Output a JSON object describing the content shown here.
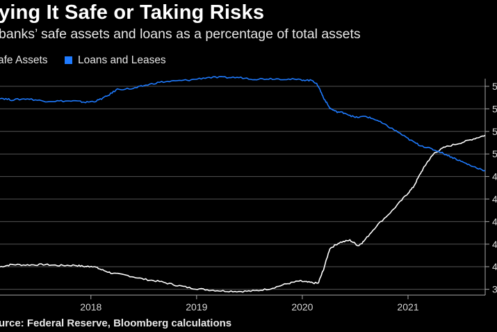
{
  "title": "ying It Safe or Taking Risks",
  "subtitle": "banks’ safe assets and loans as a percentage of total assets",
  "legend": [
    {
      "label": "afe Assets",
      "color": "#ffffff"
    },
    {
      "label": "Loans and Leases",
      "color": "#1f7bff"
    }
  ],
  "source": "urce: Federal Reserve, Bloomberg calculations",
  "chart_data": {
    "type": "line",
    "title": "ying It Safe or Taking Risks",
    "subtitle": "banks’ safe assets and loans as a percentage of total assets",
    "xlabel": "",
    "ylabel": "",
    "x_ticks": [
      "2018",
      "2019",
      "2020",
      "2021"
    ],
    "y_ticks": [
      "3",
      "4",
      "4",
      "4",
      "4",
      "4",
      "5",
      "5",
      "5",
      "5"
    ],
    "xlim": [
      2017.14,
      2021.73
    ],
    "ylim": [
      0,
      9
    ],
    "grid": true,
    "legend_position": "top-left",
    "series": [
      {
        "name": "afe Assets",
        "color": "#ffffff",
        "points": [
          [
            2017.14,
            1.02
          ],
          [
            2017.25,
            1.12
          ],
          [
            2017.4,
            1.1
          ],
          [
            2017.55,
            1.12
          ],
          [
            2017.7,
            1.08
          ],
          [
            2017.85,
            1.09
          ],
          [
            2017.95,
            1.03
          ],
          [
            2018.02,
            1.05
          ],
          [
            2018.1,
            0.9
          ],
          [
            2018.2,
            0.75
          ],
          [
            2018.35,
            0.65
          ],
          [
            2018.5,
            0.5
          ],
          [
            2018.65,
            0.4
          ],
          [
            2018.8,
            0.25
          ],
          [
            2018.95,
            0.12
          ],
          [
            2019.1,
            0.05
          ],
          [
            2019.25,
            0.0
          ],
          [
            2019.4,
            -0.02
          ],
          [
            2019.55,
            0.0
          ],
          [
            2019.7,
            0.1
          ],
          [
            2019.85,
            0.3
          ],
          [
            2019.97,
            0.42
          ],
          [
            2020.05,
            0.37
          ],
          [
            2020.15,
            0.32
          ],
          [
            2020.2,
            0.9
          ],
          [
            2020.26,
            1.8
          ],
          [
            2020.35,
            2.05
          ],
          [
            2020.45,
            2.15
          ],
          [
            2020.53,
            1.92
          ],
          [
            2020.58,
            2.1
          ],
          [
            2020.7,
            2.75
          ],
          [
            2020.85,
            3.4
          ],
          [
            2020.97,
            4.0
          ],
          [
            2021.05,
            4.4
          ],
          [
            2021.12,
            5.0
          ],
          [
            2021.18,
            5.45
          ],
          [
            2021.25,
            5.85
          ],
          [
            2021.35,
            6.1
          ],
          [
            2021.5,
            6.28
          ],
          [
            2021.62,
            6.45
          ],
          [
            2021.73,
            6.6
          ]
        ]
      },
      {
        "name": "Loans and Leases",
        "color": "#1f7bff",
        "points": [
          [
            2017.14,
            8.18
          ],
          [
            2017.25,
            8.1
          ],
          [
            2017.4,
            8.15
          ],
          [
            2017.55,
            8.05
          ],
          [
            2017.7,
            8.05
          ],
          [
            2017.85,
            8.05
          ],
          [
            2017.95,
            8.0
          ],
          [
            2018.05,
            8.05
          ],
          [
            2018.15,
            8.25
          ],
          [
            2018.25,
            8.55
          ],
          [
            2018.4,
            8.58
          ],
          [
            2018.5,
            8.7
          ],
          [
            2018.65,
            8.85
          ],
          [
            2018.8,
            8.9
          ],
          [
            2018.95,
            8.95
          ],
          [
            2019.1,
            9.05
          ],
          [
            2019.25,
            9.05
          ],
          [
            2019.4,
            9.05
          ],
          [
            2019.55,
            8.98
          ],
          [
            2019.7,
            9.0
          ],
          [
            2019.85,
            8.98
          ],
          [
            2020.0,
            8.95
          ],
          [
            2020.1,
            8.92
          ],
          [
            2020.15,
            8.7
          ],
          [
            2020.2,
            8.2
          ],
          [
            2020.26,
            7.75
          ],
          [
            2020.32,
            7.6
          ],
          [
            2020.4,
            7.55
          ],
          [
            2020.5,
            7.35
          ],
          [
            2020.6,
            7.4
          ],
          [
            2020.7,
            7.25
          ],
          [
            2020.8,
            7.0
          ],
          [
            2020.9,
            6.75
          ],
          [
            2021.0,
            6.45
          ],
          [
            2021.1,
            6.2
          ],
          [
            2021.2,
            6.05
          ],
          [
            2021.3,
            5.9
          ],
          [
            2021.4,
            5.7
          ],
          [
            2021.5,
            5.5
          ],
          [
            2021.6,
            5.3
          ],
          [
            2021.73,
            5.1
          ]
        ]
      }
    ]
  }
}
